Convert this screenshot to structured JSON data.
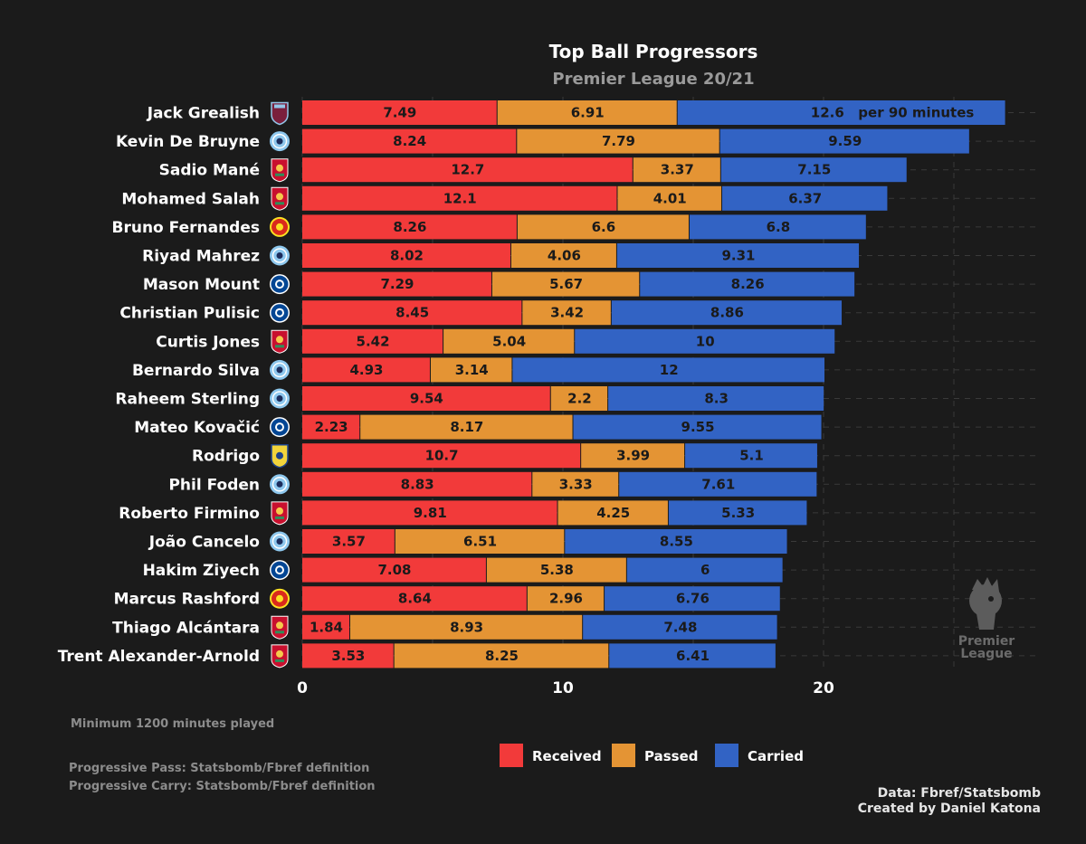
{
  "chart_data": {
    "type": "bar",
    "orientation": "horizontal",
    "stacked": true,
    "title": "Top Ball Progressors",
    "subtitle": "Premier League 20/21",
    "unit_annotation": "per 90 minutes",
    "xlim": [
      0,
      27
    ],
    "xticks": [
      "0",
      "10",
      "20"
    ],
    "xtick_values": [
      0,
      10,
      20
    ],
    "grid": "dashed vertical",
    "categories": [
      "Jack Grealish",
      "Kevin De Bruyne",
      "Sadio Mané",
      "Mohamed Salah",
      "Bruno Fernandes",
      "Riyad Mahrez",
      "Mason Mount",
      "Christian Pulisic",
      "Curtis Jones",
      "Bernardo Silva",
      "Raheem Sterling",
      "Mateo Kovačić",
      "Rodrigo",
      "Phil Foden",
      "Roberto Firmino",
      "João Cancelo",
      "Hakim Ziyech",
      "Marcus Rashford",
      "Thiago Alcántara",
      "Trent Alexander-Arnold"
    ],
    "clubs": [
      "Aston Villa",
      "Manchester City",
      "Liverpool",
      "Liverpool",
      "Manchester United",
      "Manchester City",
      "Chelsea",
      "Chelsea",
      "Liverpool",
      "Manchester City",
      "Manchester City",
      "Chelsea",
      "Leeds United",
      "Manchester City",
      "Liverpool",
      "Manchester City",
      "Chelsea",
      "Manchester United",
      "Liverpool",
      "Liverpool"
    ],
    "series": [
      {
        "name": "Received",
        "color": "#f23a3a",
        "values": [
          7.49,
          8.24,
          12.7,
          12.1,
          8.26,
          8.02,
          7.29,
          8.45,
          5.42,
          4.93,
          9.54,
          2.23,
          10.7,
          8.83,
          9.81,
          3.57,
          7.08,
          8.64,
          1.84,
          3.53
        ]
      },
      {
        "name": "Passed",
        "color": "#e49434",
        "values": [
          6.91,
          7.79,
          3.37,
          4.01,
          6.6,
          4.06,
          5.67,
          3.42,
          5.04,
          3.14,
          2.2,
          8.17,
          3.99,
          3.33,
          4.25,
          6.51,
          5.38,
          2.96,
          8.93,
          8.25
        ]
      },
      {
        "name": "Carried",
        "color": "#3263c4",
        "values": [
          12.6,
          9.59,
          7.15,
          6.37,
          6.8,
          9.31,
          8.26,
          8.86,
          10,
          12,
          8.3,
          9.55,
          5.1,
          7.61,
          5.33,
          8.55,
          6,
          6.76,
          7.48,
          6.41
        ]
      }
    ],
    "legend": {
      "placement": "bottom-center",
      "entries": [
        "Received",
        "Passed",
        "Carried"
      ]
    }
  },
  "notes": {
    "minimum": "Minimum 1200 minutes played",
    "pass_def": "Progressive Pass: Statsbomb/Fbref definition",
    "carry_def": "Progressive Carry: Statsbomb/Fbref definition"
  },
  "credits": {
    "data": "Data: Fbref/Statsbomb",
    "author": "Created by Daniel Katona"
  },
  "logo": {
    "line1": "Premier",
    "line2": "League"
  },
  "club_badges": {
    "Aston Villa": {
      "primary": "#7a1f3c",
      "secondary": "#93c5e8",
      "icon": "villa-crest-icon"
    },
    "Manchester City": {
      "primary": "#8ec8ee",
      "secondary": "#1c2c5b",
      "icon": "city-crest-icon"
    },
    "Liverpool": {
      "primary": "#c8102e",
      "secondary": "#f6c94c",
      "icon": "liverpool-crest-icon"
    },
    "Manchester United": {
      "primary": "#da291c",
      "secondary": "#fbe122",
      "icon": "united-crest-icon"
    },
    "Chelsea": {
      "primary": "#034694",
      "secondary": "#ffffff",
      "icon": "chelsea-crest-icon"
    },
    "Leeds United": {
      "primary": "#f2d43b",
      "secondary": "#1d428a",
      "icon": "leeds-crest-icon"
    }
  }
}
